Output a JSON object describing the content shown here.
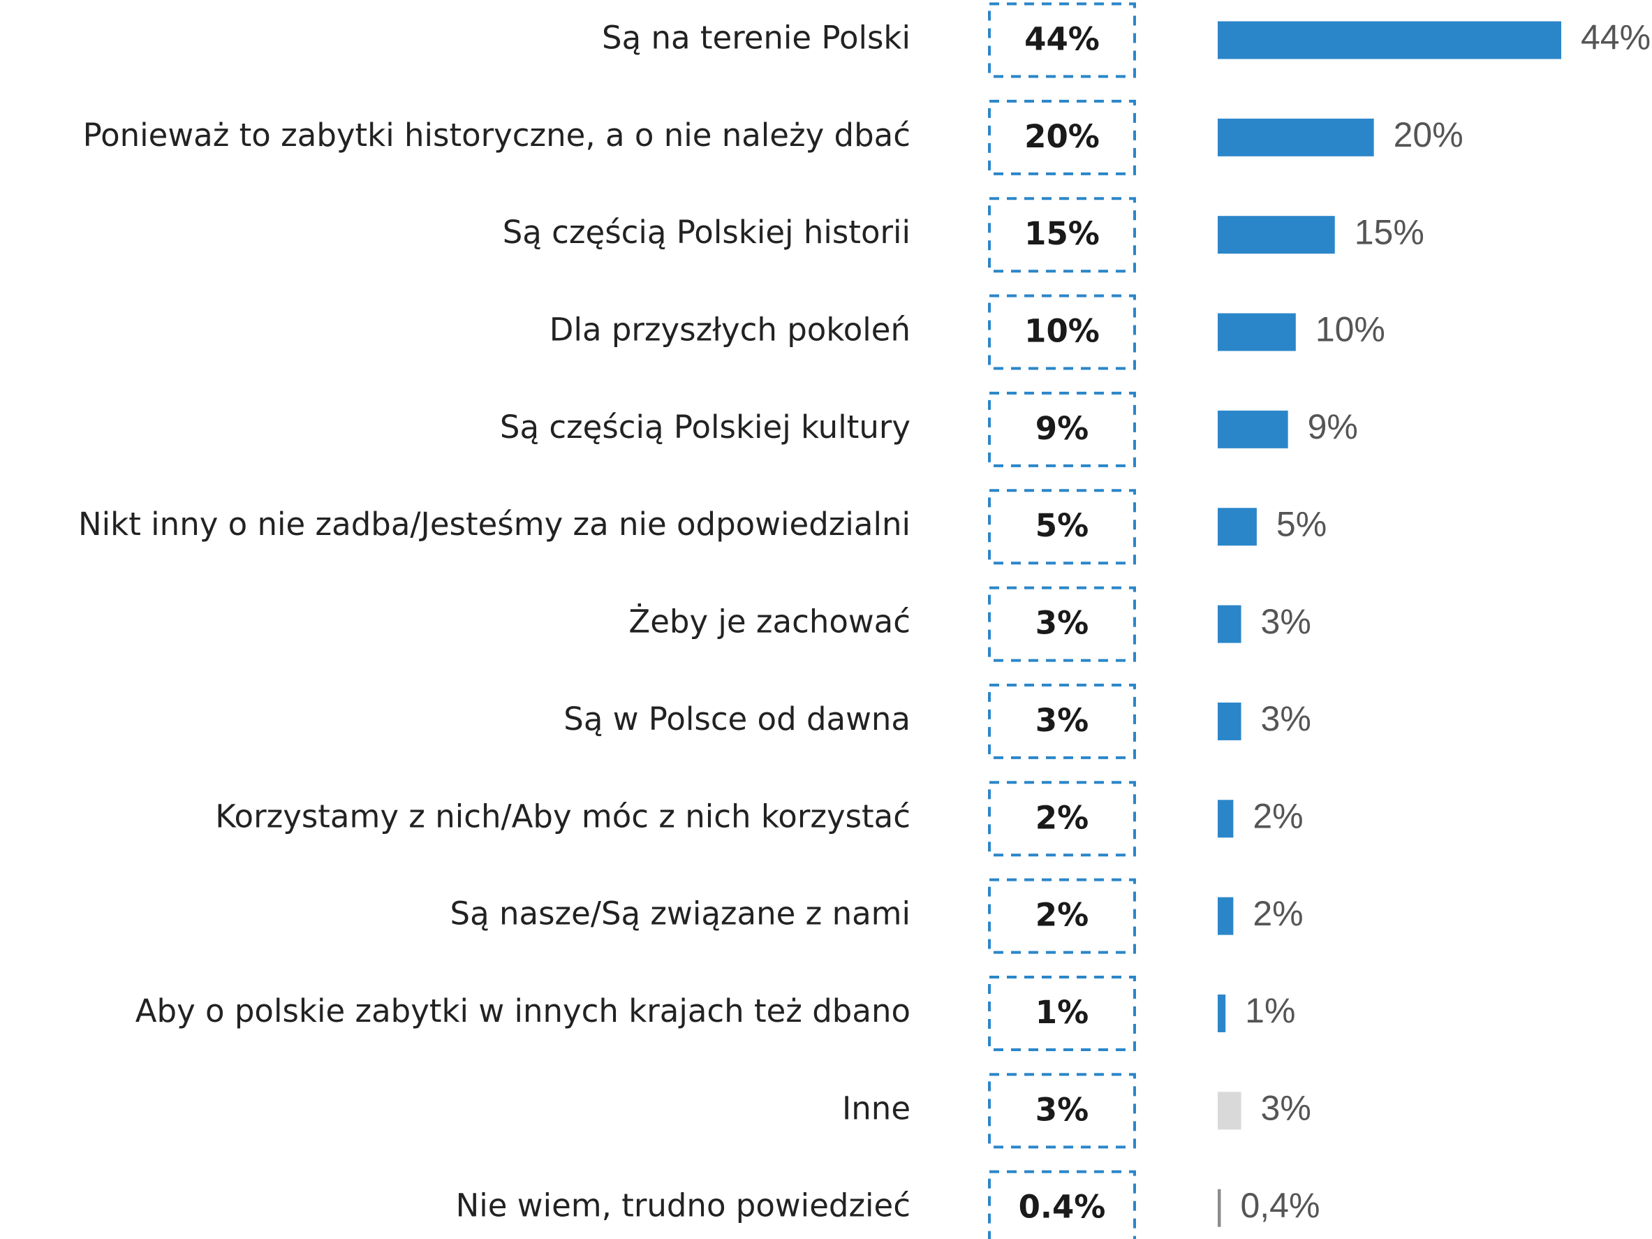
{
  "chart_data": {
    "type": "bar",
    "orientation": "horizontal",
    "categories": [
      "Są na terenie Polski",
      "Ponieważ to zabytki historyczne, a o nie należy dbać",
      "Są częścią Polskiej historii",
      "Dla przyszłych pokoleń",
      "Są częścią Polskiej kultury",
      "Nikt inny o nie zadba/Jesteśmy za nie odpowiedzialni",
      "Żeby je zachować",
      "Są w Polsce od dawna",
      "Korzystamy z nich/Aby móc z nich korzystać",
      "Są nasze/Są związane z nami",
      "Aby o polskie zabytki w innych krajach też dbano",
      "Inne",
      "Nie wiem, trudno powiedzieć"
    ],
    "values": [
      44,
      20,
      15,
      10,
      9,
      5,
      3,
      3,
      2,
      2,
      1,
      3,
      0.4
    ],
    "value_labels": [
      "44%",
      "20%",
      "15%",
      "10%",
      "9%",
      "5%",
      "3%",
      "3%",
      "2%",
      "2%",
      "1%",
      "3%",
      "0,4%"
    ],
    "table_labels": [
      "44%",
      "20%",
      "15%",
      "10%",
      "9%",
      "5%",
      "3%",
      "3%",
      "2%",
      "2%",
      "1%",
      "3%",
      "0.4%"
    ],
    "colors": [
      "#2b86c9",
      "#2b86c9",
      "#2b86c9",
      "#2b86c9",
      "#2b86c9",
      "#2b86c9",
      "#2b86c9",
      "#2b86c9",
      "#2b86c9",
      "#2b86c9",
      "#2b86c9",
      "#d9d9d9",
      "#8c8c8c"
    ],
    "xlim": [
      0,
      44
    ]
  }
}
